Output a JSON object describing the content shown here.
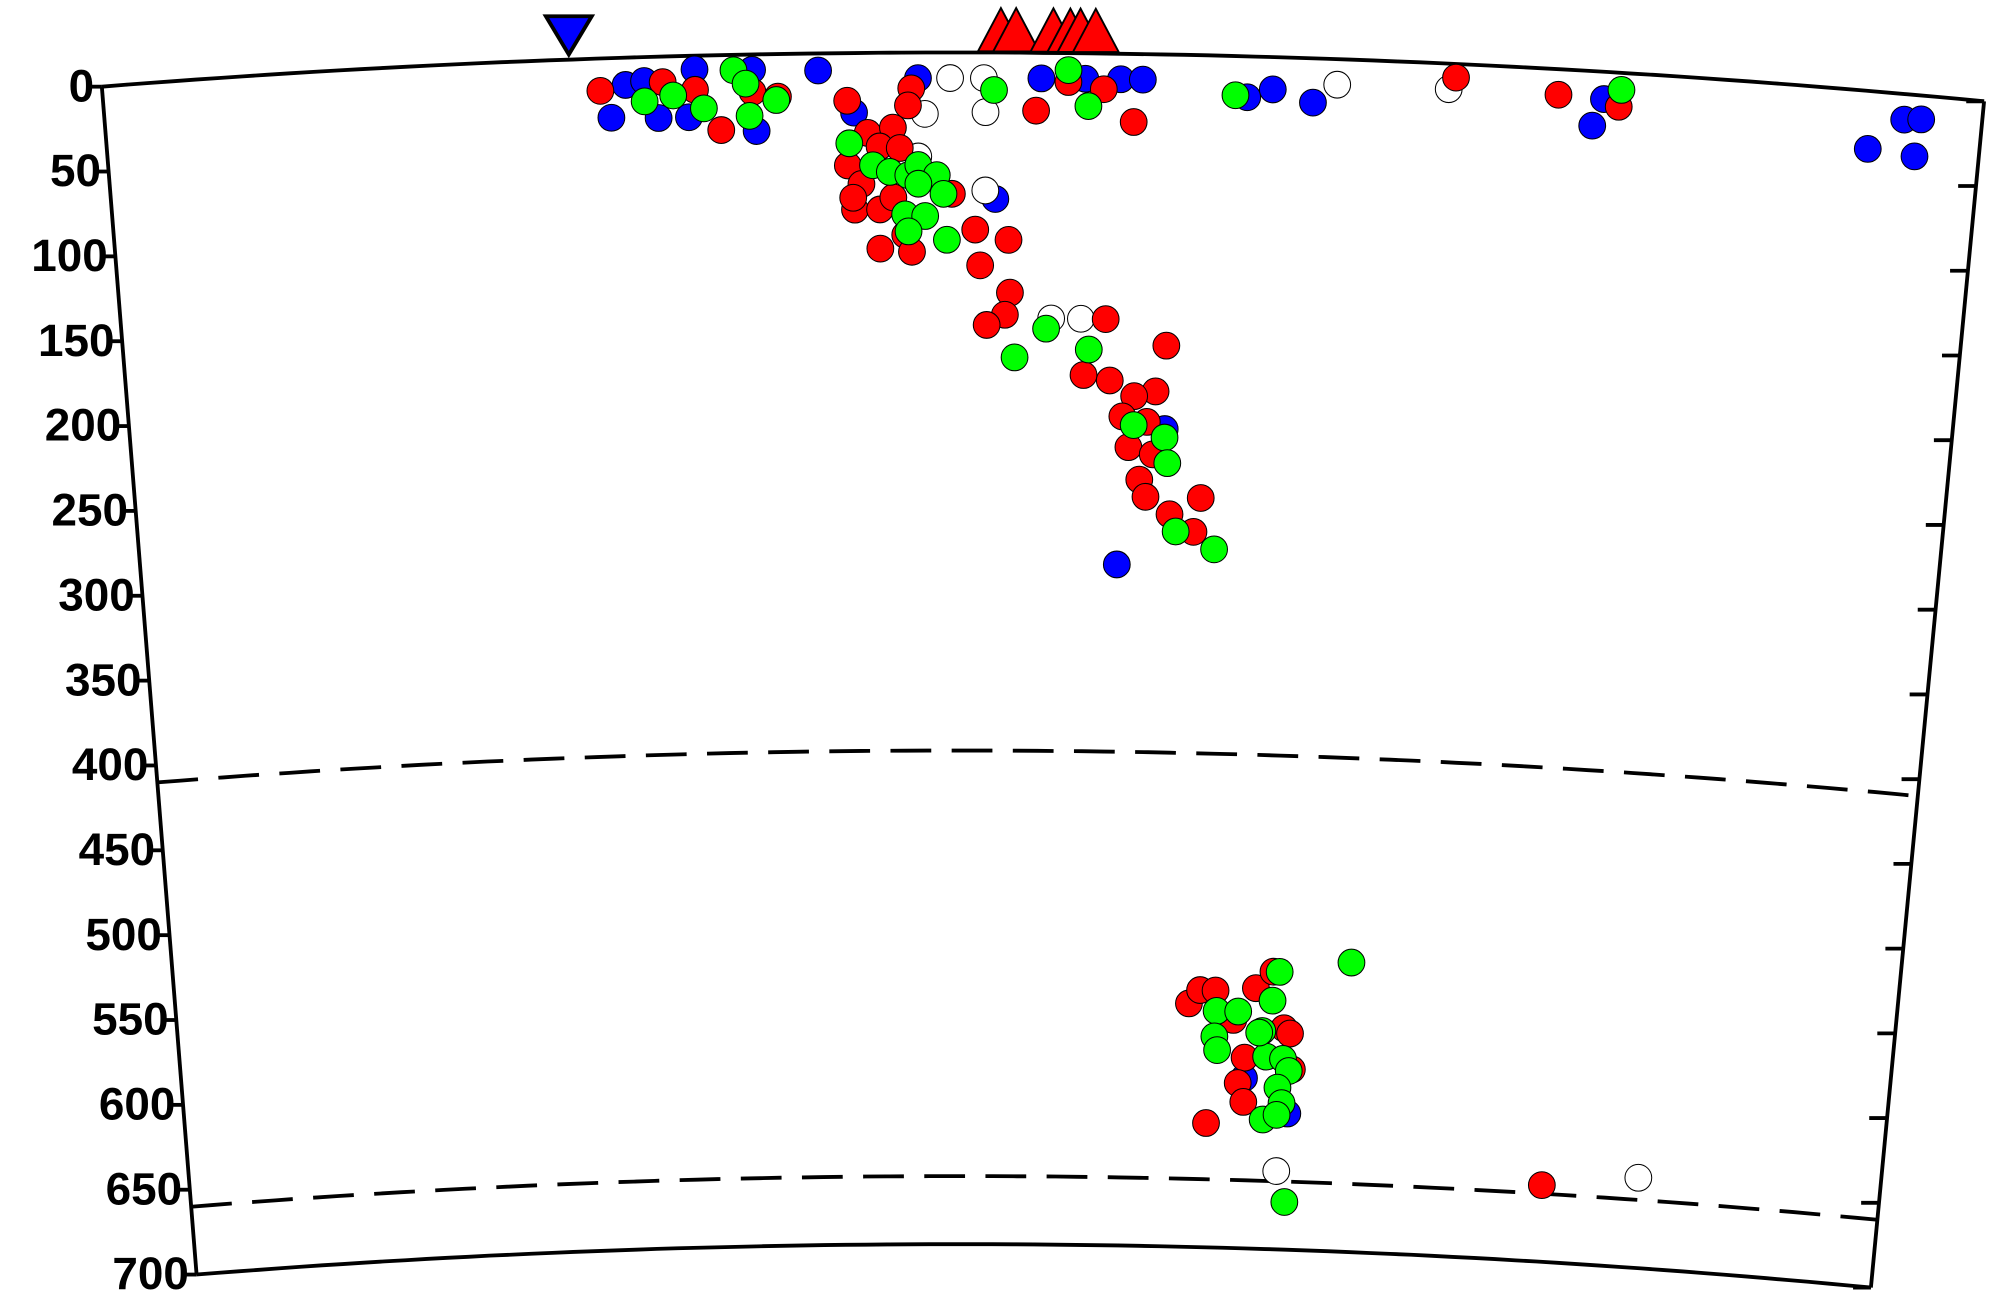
{
  "chart_data": {
    "type": "scatter",
    "xlim": [
      -45,
      1067
    ],
    "ylim": [
      0,
      700
    ],
    "yticks": [
      0,
      50,
      100,
      150,
      200,
      250,
      300,
      350,
      400,
      450,
      500,
      550,
      600,
      650,
      700
    ],
    "reference_depths": [
      410,
      660
    ],
    "volcanoes": {
      "color": "#ff0000",
      "x": [
        486,
        495,
        517,
        527,
        533,
        542
      ]
    },
    "trench": {
      "color": "#0000ff",
      "x": [
        231
      ]
    },
    "series": [
      {
        "color": "#0000ff",
        "x": [
          255,
          264,
          275,
          283,
          305,
          301,
          339,
          341,
          378,
          399,
          437,
          510,
          536,
          557,
          570,
          632,
          647,
          671,
          837,
          843,
          1021,
          1031,
          1001,
          1029,
          483,
          559,
          587,
          647,
          676
        ],
        "y": [
          35,
          16,
          14,
          36,
          8,
          36,
          9,
          45,
          10,
          35,
          15,
          15,
          15,
          15,
          15,
          24,
          19,
          26,
          32,
          16,
          15,
          14,
          34,
          36,
          86,
          300,
          220,
          600,
          620
        ]
      },
      {
        "color": "#ffffff",
        "x": [
          456,
          476,
          477,
          441,
          437,
          477,
          517,
          535,
          751,
          685,
          670,
          908
        ],
        "y": [
          15,
          15,
          35,
          36,
          61,
          81,
          156,
          156,
          15,
          15,
          654,
          647
        ]
      },
      {
        "color": "#ff0000",
        "x": [
          249,
          286,
          305,
          320,
          339,
          354,
          395,
          433,
          431,
          507,
          526,
          547,
          565,
          755,
          816,
          852,
          407,
          422,
          414,
          426,
          395,
          403,
          399,
          414,
          422,
          398,
          429,
          414,
          433,
          457,
          471,
          491,
          474,
          492,
          489,
          478,
          550,
          587,
          537,
          553,
          581,
          568,
          561,
          576,
          565,
          580,
          572,
          576,
          610,
          591,
          606,
          610,
          617,
          627,
          653,
          664,
          639,
          647,
          643,
          647,
          623,
          672,
          676,
          678,
          845
        ],
        "y": [
          19,
          15,
          20,
          44,
          22,
          25,
          28,
          21,
          31,
          34,
          17,
          21,
          40,
          8,
          15,
          20,
          47,
          44,
          55,
          56,
          66,
          77,
          92,
          92,
          85,
          85,
          107,
          115,
          117,
          83,
          104,
          110,
          125,
          141,
          154,
          160,
          156,
          171,
          189,
          192,
          198,
          201,
          213,
          216,
          231,
          235,
          250,
          260,
          260,
          270,
          280,
          557,
          549,
          549,
          547,
          537,
          566,
          588,
          603,
          614,
          627,
          570,
          573,
          594,
          655
        ]
      },
      {
        "color": "#00ff00",
        "x": [
          275,
          292,
          310,
          328,
          335,
          353,
          337,
          482,
          526,
          538,
          625,
          853,
          396,
          410,
          420,
          431,
          437,
          448,
          452,
          437,
          429,
          441,
          431,
          454,
          495,
          514,
          540,
          568,
          587,
          589,
          595,
          619,
          714,
          668,
          664,
          658,
          628,
          642,
          627,
          629,
          661,
          656,
          672,
          676,
          669,
          672,
          660,
          669,
          676
        ],
        "y": [
          26,
          23,
          31,
          9,
          17,
          27,
          36,
          22,
          10,
          31,
          23,
          10,
          53,
          66,
          70,
          72,
          66,
          72,
          83,
          77,
          95,
          96,
          105,
          110,
          179,
          162,
          174,
          218,
          225,
          240,
          280,
          290,
          530,
          537,
          554,
          572,
          561,
          561,
          576,
          584,
          587,
          573,
          588,
          595,
          605,
          614,
          624,
          621,
          672
        ]
      }
    ]
  }
}
